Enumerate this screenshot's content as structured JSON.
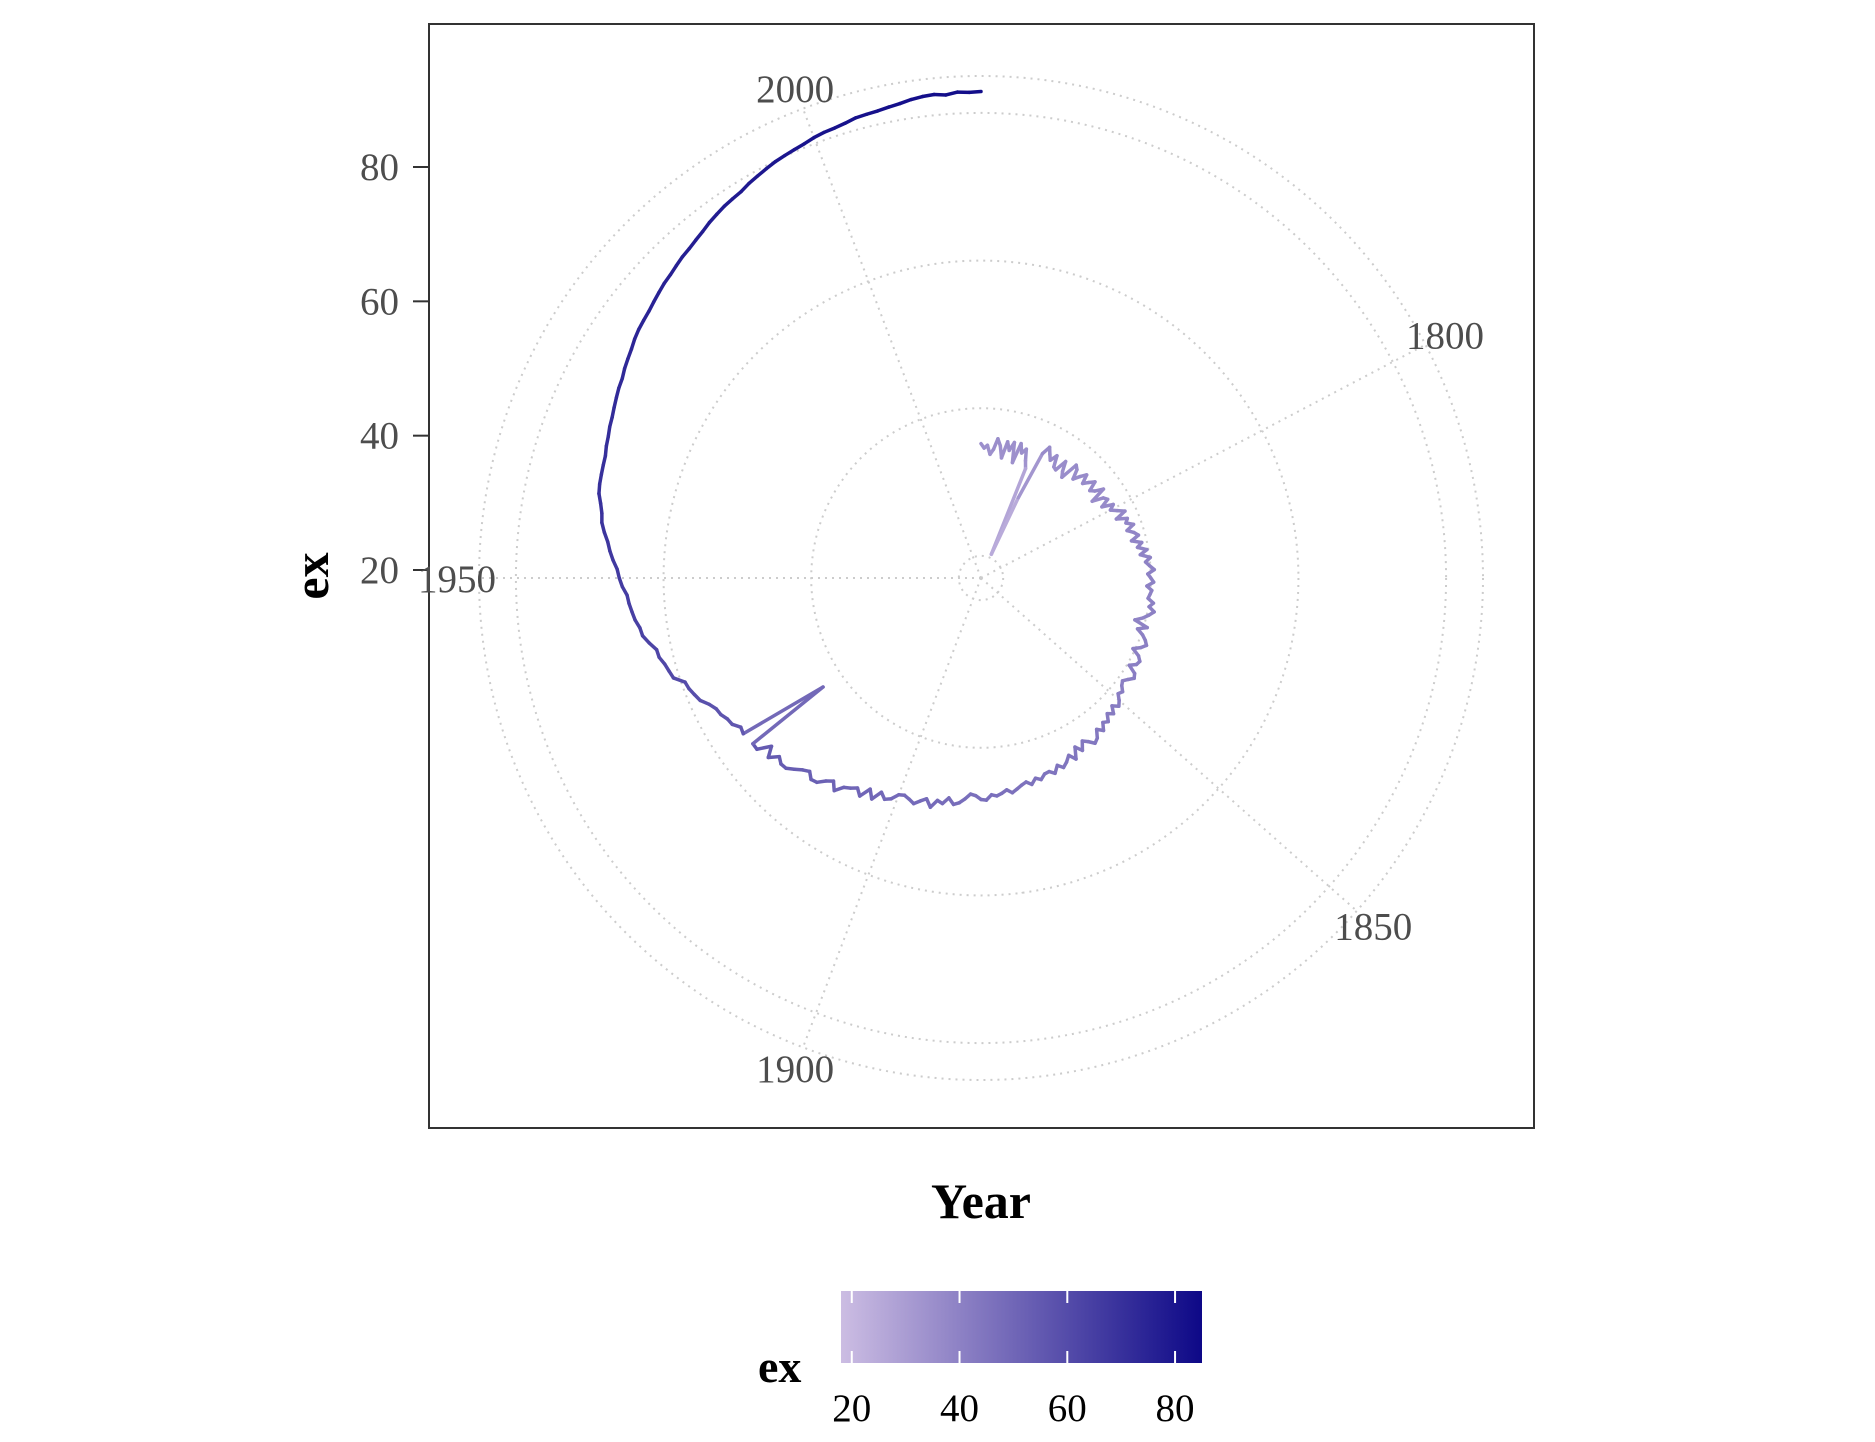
{
  "chart_data": {
    "type": "line",
    "coord": "polar",
    "xlabel": "Year",
    "ylabel": "ex",
    "x_range": [
      1755,
      2015
    ],
    "y_range": [
      17,
      85
    ],
    "y_ticks": [
      {
        "value": 20,
        "label": "20"
      },
      {
        "value": 40,
        "label": "40"
      },
      {
        "value": 60,
        "label": "60"
      },
      {
        "value": 80,
        "label": "80"
      }
    ],
    "angle_ticks": [
      {
        "value": 1800,
        "label": "1800"
      },
      {
        "value": 1850,
        "label": "1850"
      },
      {
        "value": 1900,
        "label": "1900"
      },
      {
        "value": 1950,
        "label": "1950"
      },
      {
        "value": 2000,
        "label": "2000"
      }
    ],
    "grid": true,
    "color_scale": {
      "title": "ex",
      "low": "#ccbde3",
      "high": "#0d0887",
      "ticks": [
        {
          "value": 20,
          "label": "20"
        },
        {
          "value": 40,
          "label": "40"
        },
        {
          "value": 60,
          "label": "60"
        },
        {
          "value": 80,
          "label": "80"
        }
      ],
      "range": [
        18,
        85
      ],
      "position": "bottom"
    },
    "series": [
      {
        "x": [
          1755,
          1756,
          1757,
          1758,
          1759,
          1760,
          1761,
          1762,
          1763,
          1764,
          1765,
          1766,
          1767,
          1768,
          1769,
          1770,
          1771,
          1772,
          1773,
          1774,
          1775,
          1776,
          1777,
          1778,
          1779,
          1780,
          1781,
          1782,
          1783,
          1784,
          1785,
          1786,
          1787,
          1788,
          1789,
          1790,
          1791,
          1792,
          1793,
          1794,
          1795,
          1796,
          1797,
          1798,
          1799,
          1800,
          1801,
          1802,
          1803,
          1804,
          1805,
          1806,
          1807,
          1808,
          1809,
          1810,
          1811,
          1812,
          1813,
          1814,
          1815,
          1816,
          1817,
          1818,
          1819,
          1820,
          1821,
          1822,
          1823,
          1824,
          1825,
          1826,
          1827,
          1828,
          1829,
          1830,
          1831,
          1832,
          1833,
          1834,
          1835,
          1836,
          1837,
          1838,
          1839,
          1840,
          1841,
          1842,
          1843,
          1844,
          1845,
          1846,
          1847,
          1848,
          1849,
          1850,
          1851,
          1852,
          1853,
          1854,
          1855,
          1856,
          1857,
          1858,
          1859,
          1860,
          1861,
          1862,
          1863,
          1864,
          1865,
          1866,
          1867,
          1868,
          1869,
          1870,
          1871,
          1872,
          1873,
          1874,
          1875,
          1876,
          1877,
          1878,
          1879,
          1880,
          1881,
          1882,
          1883,
          1884,
          1885,
          1886,
          1887,
          1888,
          1889,
          1890,
          1891,
          1892,
          1893,
          1894,
          1895,
          1896,
          1897,
          1898,
          1899,
          1900,
          1901,
          1902,
          1903,
          1904,
          1905,
          1906,
          1907,
          1908,
          1909,
          1910,
          1911,
          1912,
          1913,
          1914,
          1915,
          1916,
          1917,
          1918,
          1919,
          1920,
          1921,
          1922,
          1923,
          1924,
          1925,
          1926,
          1927,
          1928,
          1929,
          1930,
          1931,
          1932,
          1933,
          1934,
          1935,
          1936,
          1937,
          1938,
          1939,
          1940,
          1941,
          1942,
          1943,
          1944,
          1945,
          1946,
          1947,
          1948,
          1949,
          1950,
          1951,
          1952,
          1953,
          1954,
          1955,
          1956,
          1957,
          1958,
          1959,
          1960,
          1961,
          1962,
          1963,
          1964,
          1965,
          1966,
          1967,
          1968,
          1969,
          1970,
          1971,
          1972,
          1973,
          1974,
          1975,
          1976,
          1977,
          1978,
          1979,
          1980,
          1981,
          1982,
          1983,
          1984,
          1985,
          1986,
          1987,
          1988,
          1989,
          1990,
          1991,
          1992,
          1993,
          1994,
          1995,
          1996,
          1997,
          1998,
          1999,
          2000,
          2001,
          2002,
          2003,
          2004,
          2005,
          2006,
          2007,
          2008,
          2009,
          2010,
          2011,
          2012,
          2013,
          2014,
          2015
        ],
        "y": [
          35.2,
          34.6,
          35.0,
          33.8,
          34.5,
          36.0,
          35.1,
          33.5,
          35.8,
          34.7,
          35.9,
          33.2,
          36.0,
          34.8,
          35.5,
          34.0,
          33.0,
          20.5,
          29.0,
          35.8,
          37.0,
          36.2,
          35.5,
          36.5,
          35.0,
          34.8,
          36.5,
          35.2,
          34.5,
          37.0,
          36.6,
          35.3,
          36.2,
          37.0,
          35.8,
          36.5,
          37.2,
          35.9,
          36.4,
          37.5,
          35.3,
          36.8,
          37.2,
          36.0,
          37.5,
          36.8,
          37.6,
          38.5,
          37.0,
          38.4,
          38.0,
          38.9,
          37.8,
          38.6,
          39.1,
          38.0,
          39.3,
          38.6,
          39.8,
          38.8,
          40.1,
          39.4,
          39.9,
          40.5,
          39.6,
          40.0,
          40.4,
          39.5,
          40.2,
          40.0,
          39.8,
          40.6,
          40.1,
          40.9,
          40.3,
          39.6,
          38.6,
          40.5,
          39.3,
          40.2,
          40.8,
          41.2,
          40.6,
          39.7,
          40.8,
          41.3,
          41.1,
          40.3,
          41.5,
          41.8,
          41.2,
          40.7,
          41.0,
          41.6,
          41.3,
          42.0,
          42.5,
          41.8,
          42.7,
          42.1,
          43.0,
          42.6,
          43.5,
          42.8,
          43.8,
          44.2,
          43.5,
          43.0,
          44.1,
          43.2,
          44.7,
          43.8,
          44.5,
          45.0,
          44.4,
          45.3,
          44.8,
          44.9,
          45.5,
          45.1,
          45.8,
          45.3,
          45.6,
          46.0,
          46.4,
          45.9,
          46.3,
          46.6,
          46.4,
          47.1,
          47.0,
          46.5,
          46.3,
          47.0,
          47.6,
          47.9,
          47.1,
          48.0,
          47.7,
          48.8,
          47.8,
          48.3,
          48.9,
          48.5,
          48.2,
          48.4,
          49.3,
          49.7,
          49.0,
          50.4,
          49.3,
          50.8,
          50.0,
          50.5,
          50.9,
          52.0,
          51.0,
          51.6,
          52.5,
          52.7,
          52.0,
          52.5,
          53.2,
          53.9,
          54.0,
          53.5,
          54.7,
          53.4,
          55.2,
          55.2,
          43.0,
          55.5,
          55.3,
          56.1,
          56.3,
          56.8,
          57.0,
          57.6,
          58.5,
          58.9,
          59.3,
          59.5,
          60.8,
          61.1,
          61.4,
          61.9,
          62.0,
          62.8,
          63.5,
          63.7,
          64.2,
          64.5,
          64.8,
          65.0,
          65.6,
          66.0,
          66.3,
          66.9,
          67.4,
          67.8,
          68.4,
          68.9,
          69.1,
          69.5,
          70.0,
          70.2,
          70.3,
          70.4,
          70.5,
          70.8,
          71.0,
          71.3,
          71.5,
          71.8,
          72.1,
          72.4,
          72.6,
          73.0,
          73.3,
          73.6,
          74.0,
          74.3,
          74.5,
          74.7,
          75.0,
          75.3,
          75.6,
          75.8,
          76.1,
          76.4,
          76.6,
          76.9,
          77.2,
          77.6,
          77.9,
          78.2,
          78.4,
          78.6,
          79.0,
          79.3,
          79.6,
          79.9,
          80.1,
          80.3,
          80.5,
          80.8,
          81.0,
          81.1,
          81.3,
          81.6,
          81.7,
          81.8,
          82.0,
          82.2,
          82.5,
          82.7,
          82.8,
          82.6,
          82.9,
          82.8,
          82.9
        ]
      }
    ]
  }
}
